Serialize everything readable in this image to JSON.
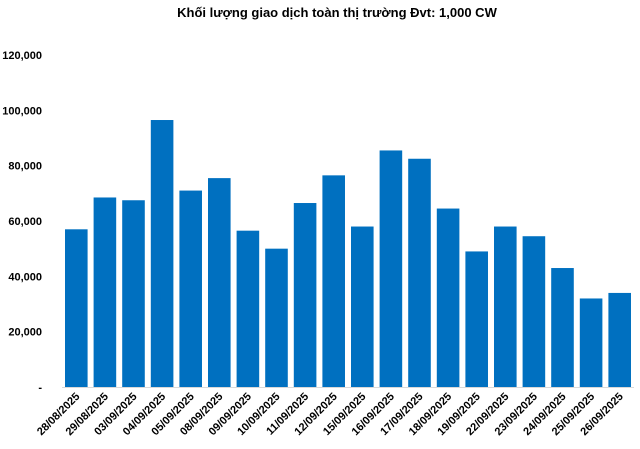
{
  "chart_data": {
    "type": "bar",
    "title": "Khối lượng giao dịch toàn thị trường Đvt: 1,000 CW",
    "xlabel": "",
    "ylabel": "",
    "categories": [
      "28/08/2025",
      "29/08/2025",
      "03/09/2025",
      "04/09/2025",
      "05/09/2025",
      "08/09/2025",
      "09/09/2025",
      "10/09/2025",
      "11/09/2025",
      "12/09/2025",
      "15/09/2025",
      "16/09/2025",
      "17/09/2025",
      "18/09/2025",
      "19/09/2025",
      "22/09/2025",
      "23/09/2025",
      "24/09/2025",
      "25/09/2025",
      "26/09/2025"
    ],
    "values": [
      57000,
      68500,
      67500,
      96500,
      71000,
      75500,
      56500,
      50000,
      66500,
      76500,
      58000,
      85500,
      82500,
      64500,
      49000,
      58000,
      54500,
      43000,
      32000,
      34000
    ],
    "ylim": [
      0,
      120000
    ],
    "yticks": [
      0,
      20000,
      40000,
      60000,
      80000,
      100000,
      120000
    ],
    "ytick_labels": [
      "-",
      "20,000",
      "40,000",
      "60,000",
      "80,000",
      "100,000",
      "120,000"
    ],
    "grid": false,
    "legend": "none",
    "bar_color": "#0070C0"
  }
}
